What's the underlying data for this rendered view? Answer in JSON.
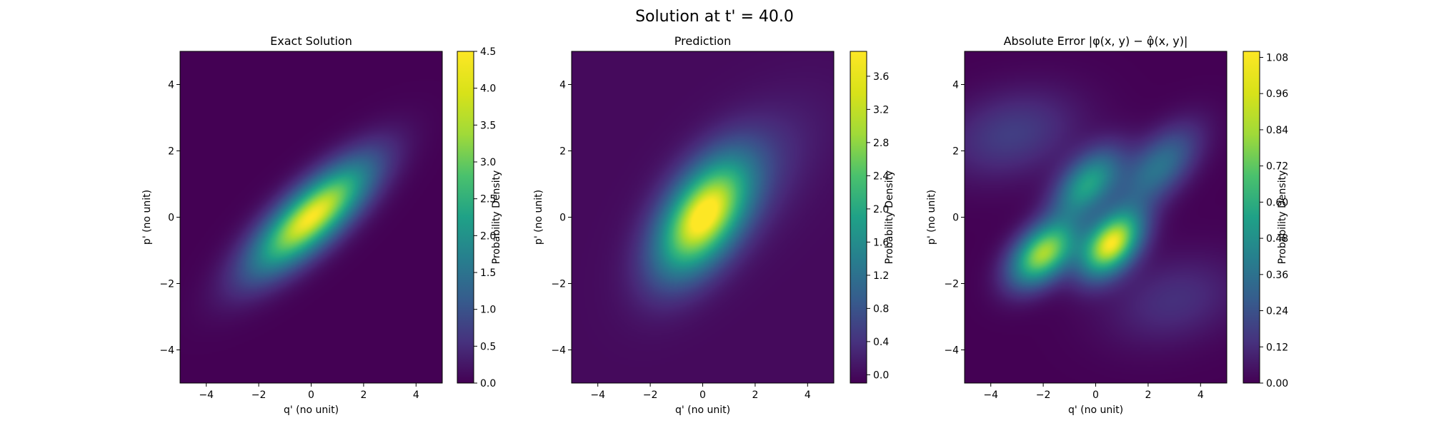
{
  "figure": {
    "suptitle": "Solution at t' = 40.0"
  },
  "chart_data": [
    {
      "type": "heatmap",
      "title": "Exact Solution",
      "xlabel": "q' (no unit)",
      "ylabel": "p' (no unit)",
      "xlim": [
        -5,
        5
      ],
      "ylim": [
        -5,
        5
      ],
      "xticks": [
        "−4",
        "−2",
        "0",
        "2",
        "4"
      ],
      "yticks": [
        "−4",
        "−2",
        "0",
        "2",
        "4"
      ],
      "colormap": "viridis",
      "colorbar": {
        "label": "Probability Density",
        "range": [
          0,
          4.5
        ],
        "ticks": [
          "0.0",
          "0.5",
          "1.0",
          "1.5",
          "2.0",
          "2.5",
          "3.0",
          "3.5",
          "4.0",
          "4.5"
        ]
      },
      "features": [
        {
          "kind": "gaussian",
          "center": [
            0,
            0
          ],
          "sigma_major": 1.85,
          "sigma_minor": 0.62,
          "angle_deg": 34,
          "peak": 4.5
        }
      ]
    },
    {
      "type": "heatmap",
      "title": "Prediction",
      "xlabel": "q' (no unit)",
      "ylabel": "p' (no unit)",
      "xlim": [
        -5,
        5
      ],
      "ylim": [
        -5,
        5
      ],
      "xticks": [
        "−4",
        "−2",
        "0",
        "2",
        "4"
      ],
      "yticks": [
        "−4",
        "−2",
        "0",
        "2",
        "4"
      ],
      "colormap": "viridis",
      "colorbar": {
        "label": "Probability Density",
        "range": [
          -0.1,
          3.9
        ],
        "ticks": [
          "0.0",
          "0.4",
          "0.8",
          "1.2",
          "1.6",
          "2.0",
          "2.4",
          "2.8",
          "3.2",
          "3.6"
        ]
      },
      "features": [
        {
          "kind": "gaussian",
          "center": [
            0,
            0
          ],
          "sigma_major": 1.5,
          "sigma_minor": 0.85,
          "angle_deg": 45,
          "peak": 3.8
        },
        {
          "kind": "gaussian",
          "center": [
            1.5,
            1.0
          ],
          "sigma_major": 2.3,
          "sigma_minor": 1.1,
          "angle_deg": 35,
          "peak": 0.5
        }
      ]
    },
    {
      "type": "heatmap",
      "title": "Absolute Error |φ(x, y) − φ̂(x, y)|",
      "xlabel": "q' (no unit)",
      "ylabel": "p' (no unit)",
      "xlim": [
        -5,
        5
      ],
      "ylim": [
        -5,
        5
      ],
      "xticks": [
        "−4",
        "−2",
        "0",
        "2",
        "4"
      ],
      "yticks": [
        "−4",
        "−2",
        "0",
        "2",
        "4"
      ],
      "colormap": "viridis",
      "colorbar": {
        "label": "Probability Density",
        "range": [
          0,
          1.1
        ],
        "ticks": [
          "0.00",
          "0.12",
          "0.24",
          "0.36",
          "0.48",
          "0.60",
          "0.72",
          "0.84",
          "0.96",
          "1.08"
        ]
      },
      "features": [
        {
          "kind": "gaussian",
          "center": [
            -2.0,
            -1.1
          ],
          "sigma_major": 0.95,
          "sigma_minor": 0.55,
          "angle_deg": 30,
          "peak": 0.95
        },
        {
          "kind": "gaussian",
          "center": [
            0.6,
            -0.8
          ],
          "sigma_major": 0.9,
          "sigma_minor": 0.55,
          "angle_deg": 35,
          "peak": 1.08
        },
        {
          "kind": "gaussian",
          "center": [
            -0.3,
            1.0
          ],
          "sigma_major": 1.0,
          "sigma_minor": 0.55,
          "angle_deg": 35,
          "peak": 0.62
        },
        {
          "kind": "gaussian",
          "center": [
            2.4,
            1.5
          ],
          "sigma_major": 1.2,
          "sigma_minor": 0.6,
          "angle_deg": 35,
          "peak": 0.42
        },
        {
          "kind": "gaussian",
          "center": [
            -3.2,
            2.5
          ],
          "sigma_major": 1.8,
          "sigma_minor": 0.9,
          "angle_deg": 10,
          "peak": 0.2
        },
        {
          "kind": "gaussian",
          "center": [
            3.0,
            -2.5
          ],
          "sigma_major": 1.8,
          "sigma_minor": 0.9,
          "angle_deg": 10,
          "peak": 0.15
        }
      ]
    }
  ]
}
